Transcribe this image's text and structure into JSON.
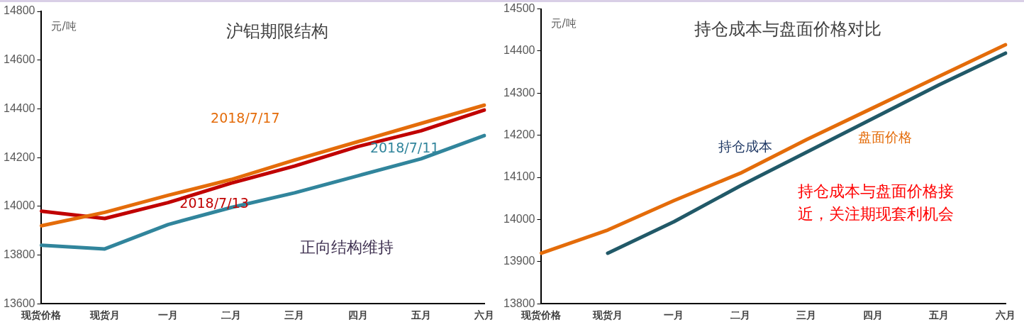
{
  "chart_data": [
    {
      "type": "line",
      "title": "沪铝期限结构",
      "ylabel": "元/吨",
      "categories": [
        "现货价格",
        "现货月",
        "一月",
        "二月",
        "三月",
        "四月",
        "五月",
        "六月"
      ],
      "series": [
        {
          "name": "2018/7/17",
          "color": "#e46c0a",
          "values": [
            13920,
            13975,
            14045,
            14110,
            14190,
            14265,
            14340,
            14415
          ]
        },
        {
          "name": "2018/7/13",
          "color": "#c00000",
          "values": [
            13980,
            13950,
            14015,
            14095,
            14165,
            14245,
            14310,
            14395
          ]
        },
        {
          "name": "2018/7/11",
          "color": "#31859c",
          "values": [
            13840,
            13825,
            13925,
            13995,
            14055,
            14125,
            14195,
            14290
          ]
        }
      ],
      "ylim": [
        13600,
        14800
      ],
      "yticks": [
        13600,
        13800,
        14000,
        14200,
        14400,
        14600,
        14800
      ],
      "annotations": [
        "正向结构维持"
      ],
      "legend": false,
      "grid": false
    },
    {
      "type": "line",
      "title": "持仓成本与盘面价格对比",
      "ylabel": "元/吨",
      "categories": [
        "现货价格",
        "现货月",
        "一月",
        "二月",
        "三月",
        "四月",
        "五月",
        "六月"
      ],
      "series": [
        {
          "name": "盘面价格",
          "color": "#e46c0a",
          "values": [
            13920,
            13975,
            14045,
            14110,
            14190,
            14265,
            14340,
            14415
          ]
        },
        {
          "name": "持仓成本",
          "color": "#215968",
          "values": [
            null,
            13920,
            13995,
            14080,
            14160,
            14240,
            14320,
            14395
          ]
        }
      ],
      "ylim": [
        13800,
        14500
      ],
      "yticks": [
        13800,
        13900,
        14000,
        14100,
        14200,
        14300,
        14400,
        14500
      ],
      "annotations": [
        "持仓成本与盘面价格接近，关注期现套利机会"
      ],
      "legend": false,
      "grid": false
    }
  ]
}
